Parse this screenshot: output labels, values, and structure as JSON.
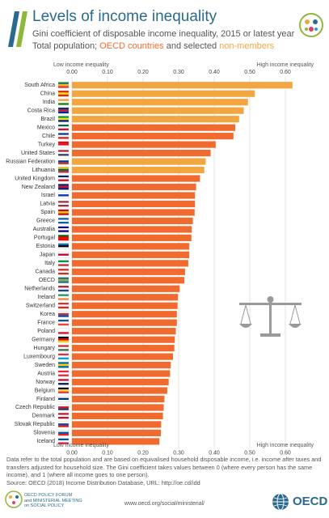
{
  "header": {
    "title": "Levels of income inequality",
    "subtitle_line1": "Gini coefficient of disposable income inequality, 2015 or latest year",
    "subtitle_prefix": "Total population; ",
    "subtitle_oecd": "OECD countries",
    "subtitle_and": " and selected ",
    "subtitle_non": "non-members"
  },
  "chart_data": {
    "type": "bar",
    "orientation": "horizontal",
    "xlim": [
      0,
      0.65
    ],
    "tick_values": [
      0.0,
      0.1,
      0.2,
      0.3,
      0.4,
      0.5,
      0.6
    ],
    "tick_labels": [
      "0.00",
      "0.10",
      "0.20",
      "0.30",
      "0.40",
      "0.50",
      "0.60"
    ],
    "top_left_label": "Low income inequality",
    "top_right_label": "High income inequality",
    "bottom_left_label": "Low income inequality",
    "bottom_right_label": "High income inequality",
    "grid": true,
    "colors": {
      "oecd": "#f26b2e",
      "non_member": "#f3a640",
      "oecd_average": "#f26b2e"
    },
    "categories": [
      "South Africa",
      "China",
      "India",
      "Costa Rica",
      "Brazil",
      "Mexico",
      "Chile",
      "Turkey",
      "United States",
      "Russian Federation",
      "Lithuania",
      "United Kingdom",
      "New Zealand",
      "Israel",
      "Latvia",
      "Spain",
      "Greece",
      "Australia",
      "Portugal",
      "Estonia",
      "Japan",
      "Italy",
      "Canada",
      "OECD",
      "Netherlands",
      "Ireland",
      "Switzerland",
      "Korea",
      "France",
      "Poland",
      "Germany",
      "Hungary",
      "Luxembourg",
      "Sweden",
      "Austria",
      "Norway",
      "Belgium",
      "Finland",
      "Czech Republic",
      "Denmark",
      "Slovak Republic",
      "Slovenia",
      "Iceland"
    ],
    "values": [
      0.62,
      0.514,
      0.495,
      0.483,
      0.47,
      0.459,
      0.454,
      0.404,
      0.39,
      0.376,
      0.372,
      0.36,
      0.349,
      0.346,
      0.346,
      0.345,
      0.34,
      0.337,
      0.336,
      0.33,
      0.33,
      0.327,
      0.318,
      0.316,
      0.303,
      0.298,
      0.297,
      0.295,
      0.295,
      0.292,
      0.289,
      0.288,
      0.284,
      0.278,
      0.276,
      0.272,
      0.268,
      0.26,
      0.258,
      0.256,
      0.251,
      0.25,
      0.246
    ],
    "group": [
      "non",
      "non",
      "non",
      "non",
      "non",
      "oecd",
      "oecd",
      "oecd",
      "oecd",
      "non",
      "non",
      "oecd",
      "oecd",
      "oecd",
      "oecd",
      "oecd",
      "oecd",
      "oecd",
      "oecd",
      "oecd",
      "oecd",
      "oecd",
      "oecd",
      "avg",
      "oecd",
      "oecd",
      "oecd",
      "oecd",
      "oecd",
      "oecd",
      "oecd",
      "oecd",
      "oecd",
      "oecd",
      "oecd",
      "oecd",
      "oecd",
      "oecd",
      "oecd",
      "oecd",
      "oecd",
      "oecd",
      "oecd"
    ]
  },
  "notes": {
    "text1": "Data refer to the total population and are based on equivalised household disposable income, i.e. income after taxes and transfers adjusted for household size. The Gini coefficient takes values between 0 (where every person has the same income), and 1 (where all income goes to one person).",
    "text2": "Source: OECD (2018) Income Distribution Database, URL: http://oe.cd/idd"
  },
  "footer": {
    "left_line1": "OECD POLICY FORUM",
    "left_line2": "and MINISTERIAL MEETING",
    "left_line3": "on SOCIAL POLICY",
    "url": "www.oecd.org/social/ministerial/",
    "logo_text": "OECD"
  },
  "icons": [
    "oecd-bars-logo",
    "social-policy-badge",
    "balance-scale-icon",
    "oecd-globe-icon",
    "country-flag-icons"
  ]
}
